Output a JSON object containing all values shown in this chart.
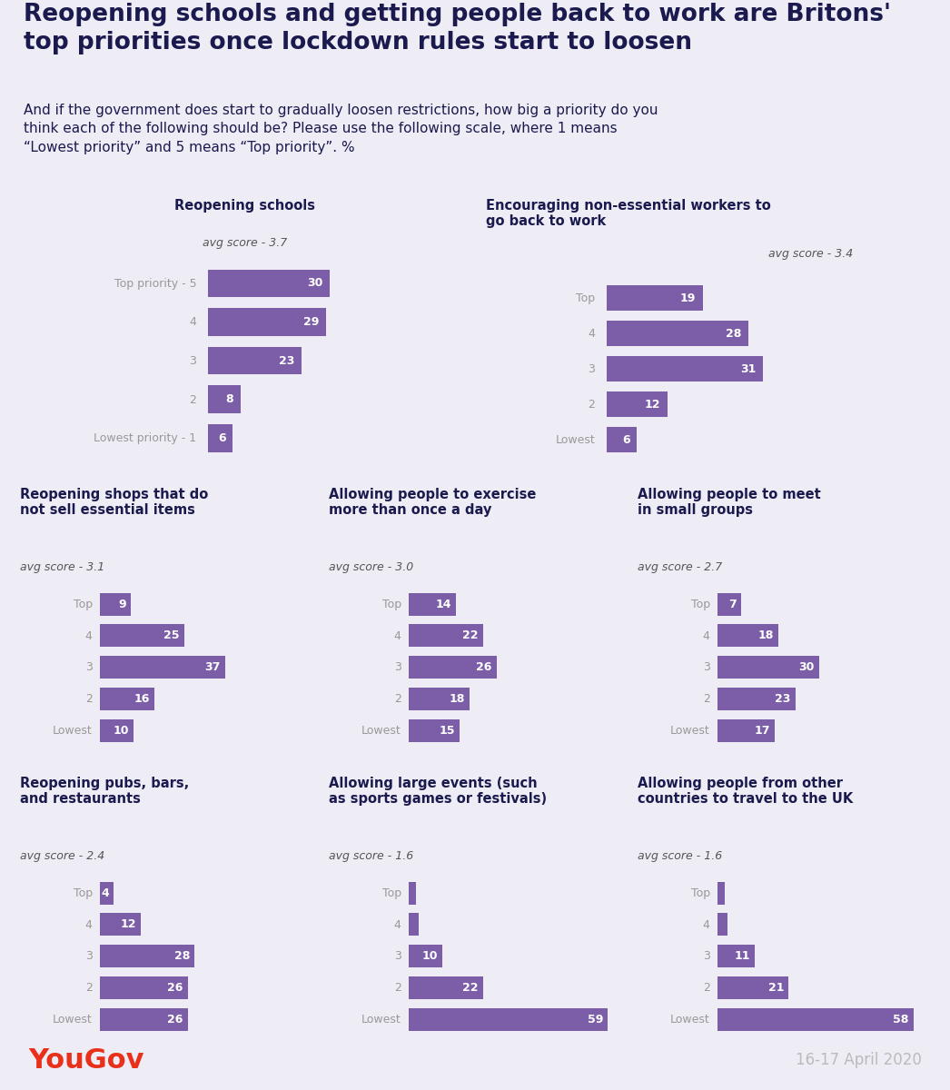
{
  "title": "Reopening schools and getting people back to work are Britons'\ntop priorities once lockdown rules start to loosen",
  "subtitle": "And if the government does start to gradually loosen restrictions, how big a priority do you\nthink each of the following should be? Please use the following scale, where 1 means\n“Lowest priority” and 5 means “Top priority”. %",
  "page_bg": "#eeecf5",
  "chart_bg": "#ffffff",
  "bar_color": "#7b5ea7",
  "title_color": "#1a1a4e",
  "label_color": "#999999",
  "bar_text_color": "#ffffff",
  "avg_color": "#555555",
  "date_text": "16-17 April 2020",
  "yougov_color": "#e8301a",
  "panels": [
    {
      "title": "Reopening schools",
      "avg": "avg score - 3.7",
      "avg_inline": false,
      "labels": [
        "Top priority - 5",
        "4",
        "3",
        "2",
        "Lowest priority - 1"
      ],
      "values": [
        30,
        29,
        23,
        8,
        6
      ],
      "row": 0,
      "col": 0,
      "title_align": "center"
    },
    {
      "title": "Encouraging non-essential workers to\ngo back to work",
      "avg": "avg score - 3.4",
      "avg_inline": true,
      "labels": [
        "Top",
        "4",
        "3",
        "2",
        "Lowest"
      ],
      "values": [
        19,
        28,
        31,
        12,
        6
      ],
      "row": 0,
      "col": 1,
      "title_align": "left"
    },
    {
      "title": "Reopening shops that do\nnot sell essential items",
      "avg": "avg score - 3.1",
      "avg_inline": false,
      "labels": [
        "Top",
        "4",
        "3",
        "2",
        "Lowest"
      ],
      "values": [
        9,
        25,
        37,
        16,
        10
      ],
      "row": 1,
      "col": 0,
      "title_align": "left"
    },
    {
      "title": "Allowing people to exercise\nmore than once a day",
      "avg": "avg score - 3.0",
      "avg_inline": false,
      "labels": [
        "Top",
        "4",
        "3",
        "2",
        "Lowest"
      ],
      "values": [
        14,
        22,
        26,
        18,
        15
      ],
      "row": 1,
      "col": 1,
      "title_align": "left"
    },
    {
      "title": "Allowing people to meet\nin small groups",
      "avg": "avg score - 2.7",
      "avg_inline": false,
      "labels": [
        "Top",
        "4",
        "3",
        "2",
        "Lowest"
      ],
      "values": [
        7,
        18,
        30,
        23,
        17
      ],
      "row": 1,
      "col": 2,
      "title_align": "left"
    },
    {
      "title": "Reopening pubs, bars,\nand restaurants",
      "avg": "avg score - 2.4",
      "avg_inline": false,
      "labels": [
        "Top",
        "4",
        "3",
        "2",
        "Lowest"
      ],
      "values": [
        4,
        12,
        28,
        26,
        26
      ],
      "row": 2,
      "col": 0,
      "title_align": "left"
    },
    {
      "title": "Allowing large events (such\nas sports games or festivals)",
      "avg": "avg score - 1.6",
      "avg_inline": false,
      "labels": [
        "Top",
        "4",
        "3",
        "2",
        "Lowest"
      ],
      "values": [
        2,
        3,
        10,
        22,
        59
      ],
      "row": 2,
      "col": 1,
      "title_align": "left"
    },
    {
      "title": "Allowing people from other\ncountries to travel to the UK",
      "avg": "avg score - 1.6",
      "avg_inline": false,
      "labels": [
        "Top",
        "4",
        "3",
        "2",
        "Lowest"
      ],
      "values": [
        2,
        3,
        11,
        21,
        58
      ],
      "row": 2,
      "col": 2,
      "title_align": "left"
    }
  ]
}
